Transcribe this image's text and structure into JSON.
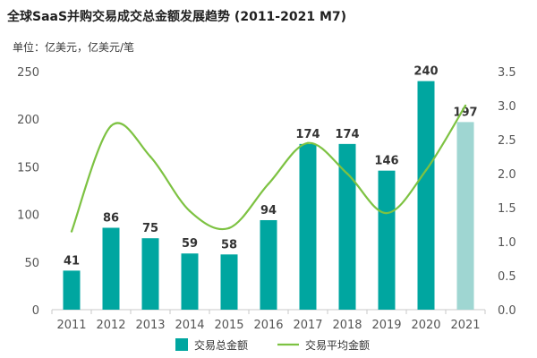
{
  "page": {
    "title": "全球SaaS并购交易成交总金额发展趋势 (2011-2021 M7)",
    "unit_label": "单位：亿美元，亿美元/笔"
  },
  "chart_data": {
    "type": "bar",
    "categories": [
      "2011",
      "2012",
      "2013",
      "2014",
      "2015",
      "2016",
      "2017",
      "2018",
      "2019",
      "2020",
      "2021"
    ],
    "series": [
      {
        "name": "交易总金额",
        "type": "bar",
        "axis": "left",
        "color": "#00A6A0",
        "highlight_last_color": "#9FD6D2",
        "values": [
          41,
          86,
          75,
          59,
          58,
          94,
          174,
          174,
          146,
          240,
          197
        ]
      },
      {
        "name": "交易平均金额",
        "type": "line",
        "axis": "right",
        "color": "#7DC242",
        "values": [
          1.15,
          2.7,
          2.25,
          1.45,
          1.2,
          1.85,
          2.45,
          2.0,
          1.42,
          2.05,
          3.0
        ]
      }
    ],
    "ylim_left": [
      0,
      250
    ],
    "yticks_left": [
      "0",
      "50",
      "100",
      "150",
      "200",
      "250"
    ],
    "ylim_right": [
      0,
      3.5
    ],
    "yticks_right": [
      "0.0",
      "0.5",
      "1.0",
      "1.5",
      "2.0",
      "2.5",
      "3.0",
      "3.5"
    ],
    "grid": false,
    "legend": "bottom"
  }
}
